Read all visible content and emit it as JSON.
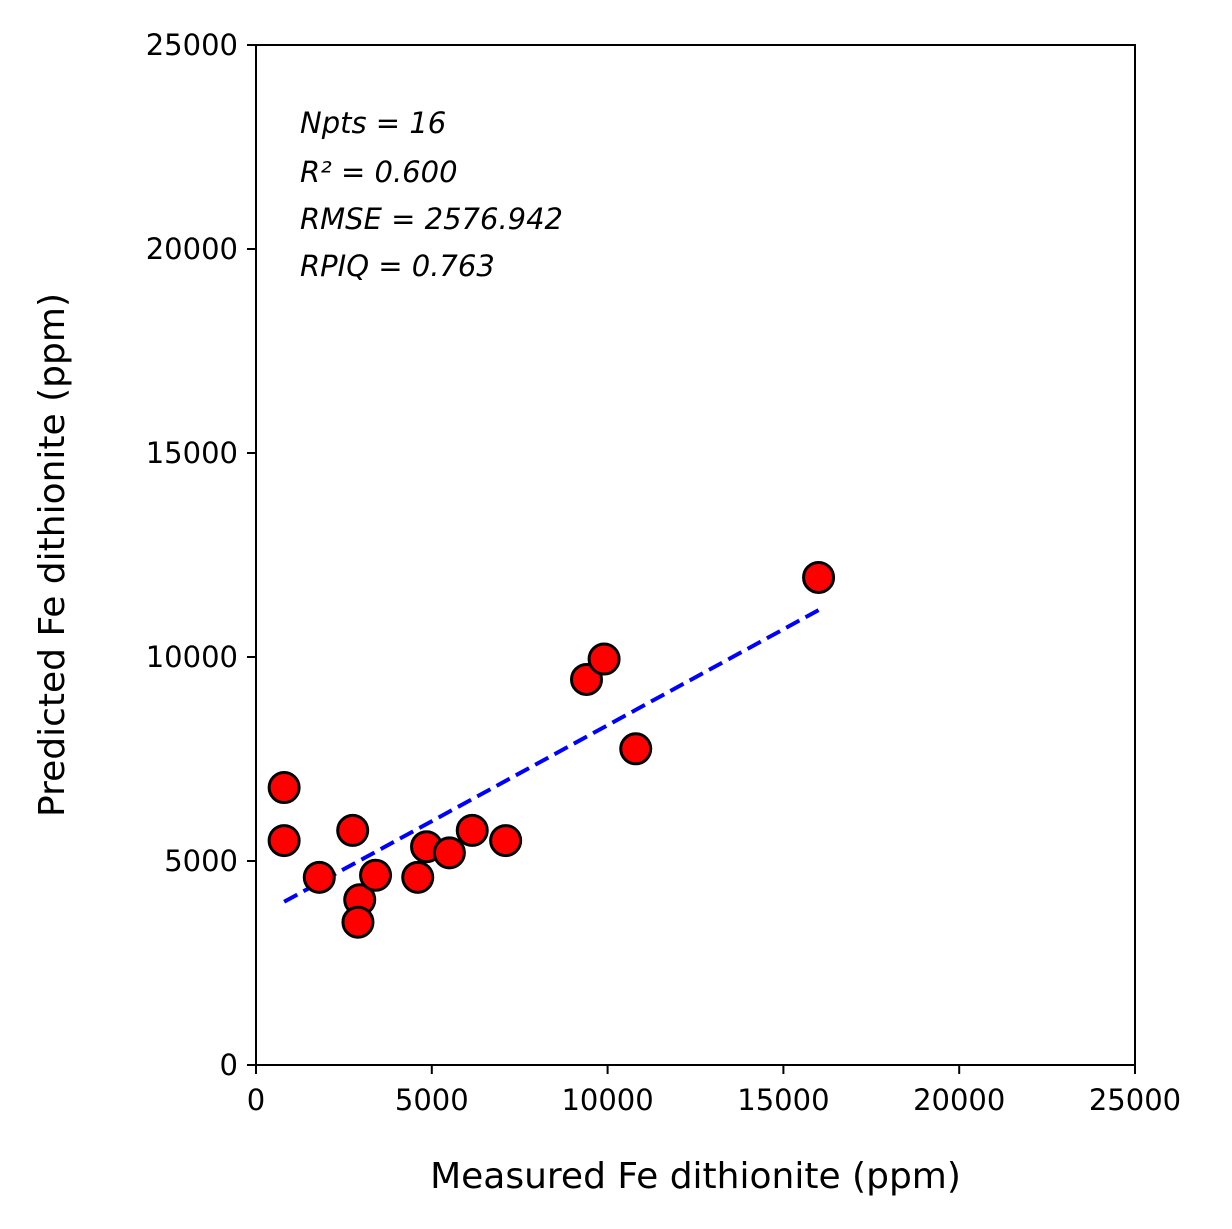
{
  "chart_data": {
    "type": "scatter",
    "title": "",
    "xlabel": "Measured Fe dithionite (ppm)",
    "ylabel": "Predicted Fe dithionite (ppm)",
    "xlim": [
      0,
      25000
    ],
    "ylim": [
      0,
      25000
    ],
    "xticks": [
      "0",
      "5000",
      "10000",
      "15000",
      "20000",
      "25000"
    ],
    "yticks": [
      "0",
      "5000",
      "10000",
      "15000",
      "20000",
      "25000"
    ],
    "grid": false,
    "legend": "none",
    "colors": {
      "points": "#ff0000",
      "point_edge": "#000000",
      "fit_line": "#0000ff"
    },
    "points": [
      {
        "x": 800,
        "y": 6800
      },
      {
        "x": 800,
        "y": 5500
      },
      {
        "x": 1800,
        "y": 4600
      },
      {
        "x": 2750,
        "y": 5750
      },
      {
        "x": 2950,
        "y": 4050
      },
      {
        "x": 2900,
        "y": 3500
      },
      {
        "x": 3400,
        "y": 4650
      },
      {
        "x": 4600,
        "y": 4600
      },
      {
        "x": 4850,
        "y": 5350
      },
      {
        "x": 5500,
        "y": 5200
      },
      {
        "x": 6150,
        "y": 5750
      },
      {
        "x": 7100,
        "y": 5500
      },
      {
        "x": 9400,
        "y": 9450
      },
      {
        "x": 9900,
        "y": 9950
      },
      {
        "x": 10800,
        "y": 7750
      },
      {
        "x": 16000,
        "y": 11950
      }
    ],
    "fit_line": {
      "style": "dashed",
      "x": [
        800,
        16000
      ],
      "y": [
        4000,
        11150
      ]
    },
    "annotations": [
      "Npts = 16",
      "R² = 0.600",
      "RMSE = 2576.942",
      "RPIQ = 0.763"
    ]
  }
}
